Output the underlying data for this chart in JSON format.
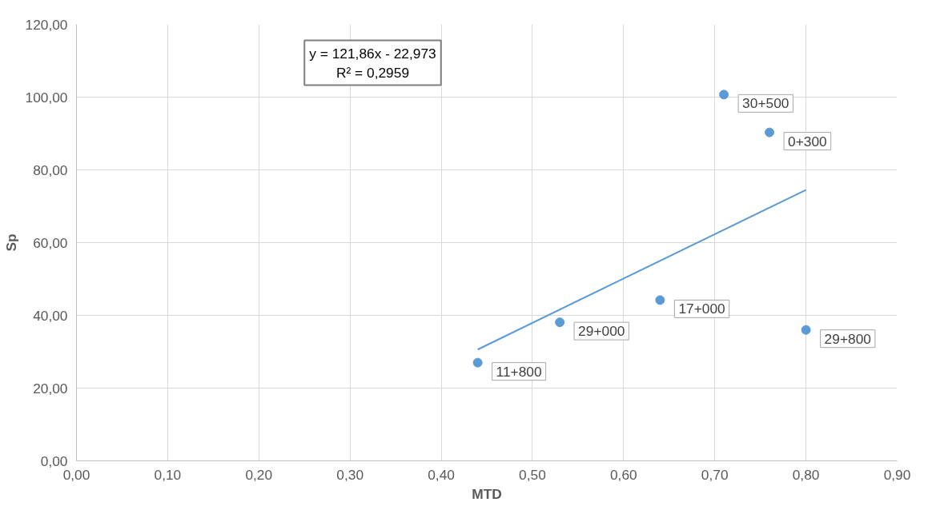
{
  "chart_data": {
    "type": "scatter",
    "xlabel": "MTD",
    "ylabel": "Sp",
    "xlim": [
      0,
      0.9
    ],
    "ylim": [
      0,
      120
    ],
    "xticks": [
      {
        "value": 0,
        "label": "0,00"
      },
      {
        "value": 0.1,
        "label": "0,10"
      },
      {
        "value": 0.2,
        "label": "0,20"
      },
      {
        "value": 0.3,
        "label": "0,30"
      },
      {
        "value": 0.4,
        "label": "0,40"
      },
      {
        "value": 0.5,
        "label": "0,50"
      },
      {
        "value": 0.6,
        "label": "0,60"
      },
      {
        "value": 0.7,
        "label": "0,70"
      },
      {
        "value": 0.8,
        "label": "0,80"
      },
      {
        "value": 0.9,
        "label": "0,90"
      }
    ],
    "yticks": [
      {
        "value": 0,
        "label": "0,00"
      },
      {
        "value": 20,
        "label": "20,00"
      },
      {
        "value": 40,
        "label": "40,00"
      },
      {
        "value": 60,
        "label": "60,00"
      },
      {
        "value": 80,
        "label": "80,00"
      },
      {
        "value": 100,
        "label": "100,00"
      },
      {
        "value": 120,
        "label": "120,00"
      }
    ],
    "grid": true,
    "series": [
      {
        "marker": "circle",
        "color": "#5b9bd5",
        "x": [
          0.44,
          0.53,
          0.64,
          0.71,
          0.76,
          0.8
        ],
        "values": [
          27.0,
          38.1,
          44.2,
          100.7,
          90.3,
          36.0
        ]
      },
      {
        "type": "line",
        "color": "#5b9bd5",
        "x": [
          0.44,
          0.8
        ],
        "values": [
          30.6,
          74.5
        ]
      }
    ],
    "annotations": [
      "y = 121,86x - 22,973\nR² = 0,2959",
      {
        "text": "11+800",
        "x": 0.44,
        "y": 27.0
      },
      {
        "text": "29+000",
        "x": 0.53,
        "y": 38.1
      },
      {
        "text": "17+000",
        "x": 0.64,
        "y": 44.2
      },
      {
        "text": "30+500",
        "x": 0.71,
        "y": 100.7
      },
      {
        "text": "0+300",
        "x": 0.76,
        "y": 90.3
      },
      {
        "text": "29+800",
        "x": 0.8,
        "y": 36.0
      }
    ]
  }
}
